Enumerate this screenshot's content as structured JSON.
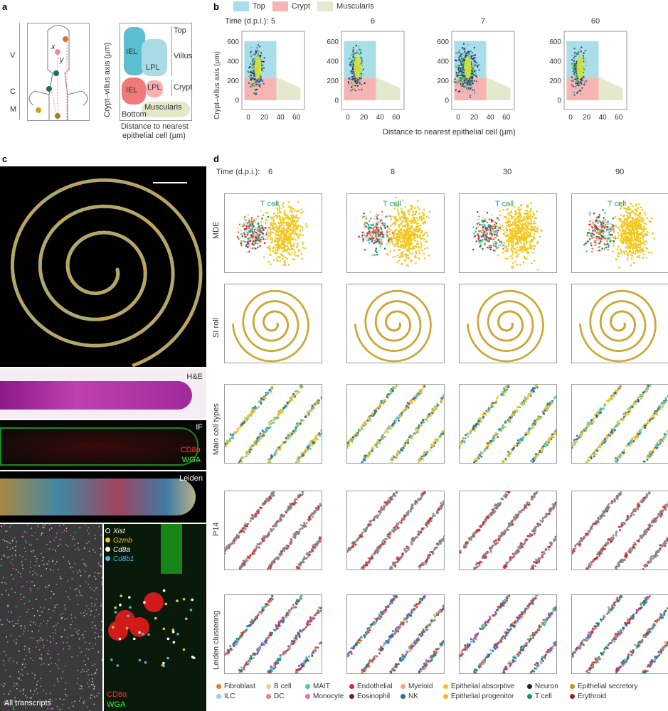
{
  "panels": {
    "a": "a",
    "b": "b",
    "c": "c",
    "d": "d"
  },
  "panel_a": {
    "zones": [
      "V",
      "C",
      "M"
    ],
    "coords": [
      "x",
      "y"
    ],
    "regions": {
      "iel_top": "IEL",
      "lpl_top": "LPL",
      "iel_crypt": "IEL",
      "lpl_crypt": "LPL",
      "muscularis": "Muscularis",
      "bottom": "Bottom"
    },
    "side_labels": [
      "Top",
      "Villus",
      "Crypt"
    ],
    "ylabel": "Crypt–villus axis (µm)",
    "xlabel_line1": "Distance to nearest",
    "xlabel_line2": "epithelial cell (µm)",
    "colors": {
      "iel_top": "#5bbfd0",
      "lpl_top": "#a8dbe6",
      "iel_crypt": "#f07a7a",
      "lpl_crypt": "#f6b0b0",
      "muscularis": "#e3e8c8"
    }
  },
  "chart_data": {
    "type": "scatter",
    "legend": [
      {
        "name": "Top",
        "color": "#a9dde8"
      },
      {
        "name": "Crypt",
        "color": "#f6b4b4"
      },
      {
        "name": "Muscularis",
        "color": "#e4e8cc"
      }
    ],
    "legend_placement": "top",
    "time_label": "Time (d.p.i.):",
    "panels": [
      "5",
      "6",
      "7",
      "60"
    ],
    "ylabel": "Crypt–villus axis (µm)",
    "xlabel": "Distance to nearest epithelial cell (µm)",
    "xticks": [
      "0",
      "20",
      "40",
      "60"
    ],
    "yticks": [
      "0",
      "200",
      "400",
      "600"
    ],
    "xlim": [
      -8,
      70
    ],
    "ylim": [
      -100,
      700
    ],
    "regions": {
      "top": {
        "x": [
          -5,
          35
        ],
        "y": [
          220,
          600
        ]
      },
      "crypt": {
        "x": [
          -5,
          35
        ],
        "y": [
          -5,
          220
        ]
      },
      "muscularis": {
        "x": [
          35,
          65
        ],
        "y": [
          -5,
          230
        ]
      }
    }
  },
  "panel_c": {
    "labels": {
      "he": "H&E",
      "if": "IF",
      "cd8a": "CD8α",
      "wga": "WGA",
      "leiden": "Leiden",
      "all": "All transcripts",
      "cd8a2": "CD8α",
      "wga2": "WGA"
    },
    "genes": [
      {
        "name": "Xist",
        "color": "#ffffff"
      },
      {
        "name": "Gzmb",
        "color": "#e8c43a"
      },
      {
        "name": "Cd8a",
        "color": "#ffffff"
      },
      {
        "name": "Cd8b1",
        "color": "#4fb3e8"
      }
    ]
  },
  "panel_d": {
    "time_label": "Time (d.p.i.):",
    "times": [
      "6",
      "8",
      "30",
      "90"
    ],
    "rows": [
      "MDE",
      "SI roll",
      "Main cell types",
      "P14",
      "Leiden clustering"
    ],
    "tcell": "T cell",
    "legend": [
      {
        "name": "Fibroblast",
        "color": "#f07b2a"
      },
      {
        "name": "B cell",
        "color": "#f0c9b0"
      },
      {
        "name": "MAIT",
        "color": "#4fc4c4"
      },
      {
        "name": "Endothelial",
        "color": "#d8204c"
      },
      {
        "name": "Myeloid",
        "color": "#f2a090"
      },
      {
        "name": "Epithelial absorptive",
        "color": "#f2c81e"
      },
      {
        "name": "Neuron",
        "color": "#1e1e4a"
      },
      {
        "name": "Epithelial secretory",
        "color": "#b89a20"
      },
      {
        "name": "ILC",
        "color": "#9ccfe0"
      },
      {
        "name": "DC",
        "color": "#f07a8a"
      },
      {
        "name": "Monocyte",
        "color": "#d87aa8"
      },
      {
        "name": "Eosinophil",
        "color": "#6a1a48"
      },
      {
        "name": "NK",
        "color": "#2a6f9a"
      },
      {
        "name": "Epithelial progenitor",
        "color": "#f5b82a"
      },
      {
        "name": "T cell",
        "color": "#12956a"
      },
      {
        "name": "Erythroid",
        "color": "#a01a2a"
      }
    ]
  }
}
